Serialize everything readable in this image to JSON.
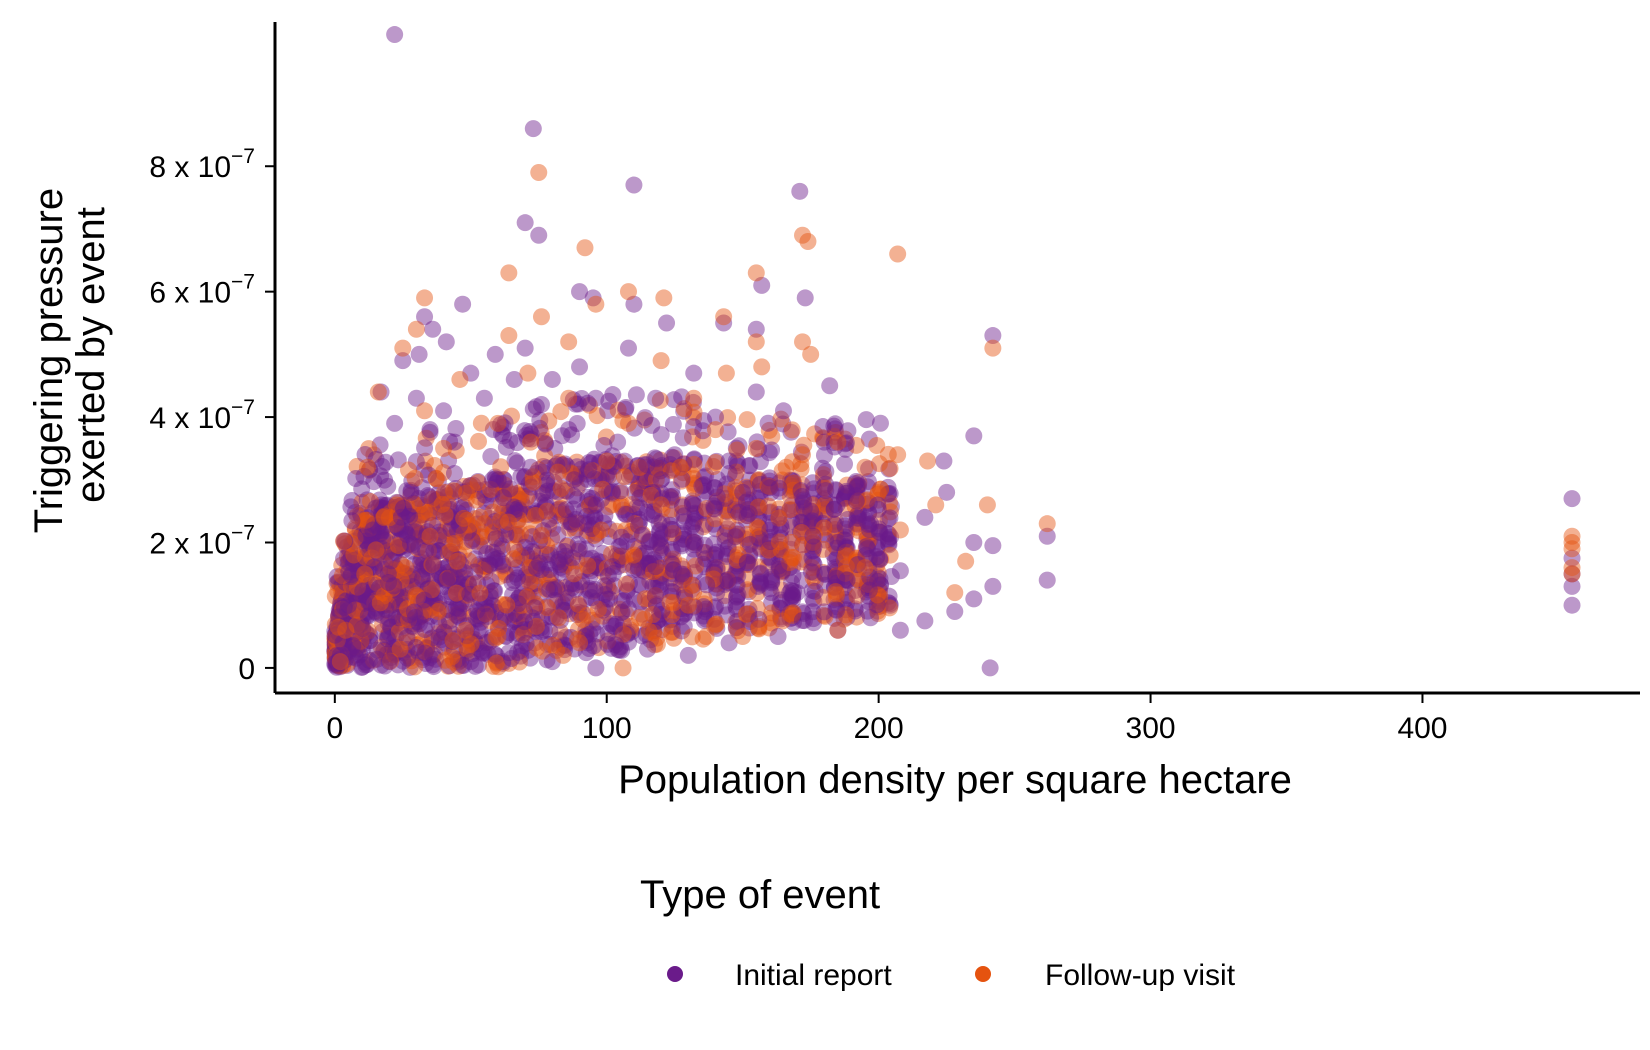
{
  "chart_data": {
    "type": "scatter",
    "xlabel": "Population density per square hectare",
    "ylabel_lines": [
      "Triggering pressure",
      "exerted by event"
    ],
    "xlim": [
      -22,
      480
    ],
    "ylim": [
      -4e-08,
      1.03e-06
    ],
    "x_ticks": [
      {
        "value": 0,
        "label": "0"
      },
      {
        "value": 100,
        "label": "100"
      },
      {
        "value": 200,
        "label": "200"
      },
      {
        "value": 300,
        "label": "300"
      },
      {
        "value": 400,
        "label": "400"
      }
    ],
    "y_ticks": [
      {
        "value": 0,
        "base": "0",
        "exp": ""
      },
      {
        "value": 2e-07,
        "base": "2 x 10",
        "exp": "−7"
      },
      {
        "value": 4e-07,
        "base": "4 x 10",
        "exp": "−7"
      },
      {
        "value": 6e-07,
        "base": "6 x 10",
        "exp": "−7"
      },
      {
        "value": 8e-07,
        "base": "8 x 10",
        "exp": "−7"
      }
    ],
    "legend": {
      "title": "Type of event",
      "position": "bottom",
      "entries": [
        "Initial report",
        "Follow-up visit"
      ]
    },
    "series": [
      {
        "name": "Initial report",
        "color": "#6a1b8a",
        "opacity": 0.45,
        "points": [
          [
            22,
            1.01e-06
          ],
          [
            73,
            8.6e-07
          ],
          [
            110,
            7.7e-07
          ],
          [
            171,
            7.6e-07
          ],
          [
            70,
            7.1e-07
          ],
          [
            75,
            6.9e-07
          ],
          [
            90,
            6e-07
          ],
          [
            95,
            5.9e-07
          ],
          [
            110,
            5.8e-07
          ],
          [
            122,
            5.5e-07
          ],
          [
            173,
            5.9e-07
          ],
          [
            157,
            6.1e-07
          ],
          [
            47,
            5.8e-07
          ],
          [
            33,
            5.6e-07
          ],
          [
            36,
            5.4e-07
          ],
          [
            41,
            5.2e-07
          ],
          [
            242,
            5.3e-07
          ],
          [
            143,
            5.5e-07
          ],
          [
            155,
            5.4e-07
          ],
          [
            108,
            5.1e-07
          ],
          [
            70,
            5.1e-07
          ],
          [
            59,
            5e-07
          ],
          [
            25,
            4.9e-07
          ],
          [
            31,
            5e-07
          ],
          [
            50,
            4.7e-07
          ],
          [
            66,
            4.6e-07
          ],
          [
            80,
            4.6e-07
          ],
          [
            90,
            4.8e-07
          ],
          [
            132,
            4.7e-07
          ],
          [
            155,
            4.4e-07
          ],
          [
            182,
            4.5e-07
          ],
          [
            17,
            4.4e-07
          ],
          [
            30,
            4.3e-07
          ],
          [
            40,
            4.1e-07
          ],
          [
            55,
            4.3e-07
          ],
          [
            76,
            4.2e-07
          ],
          [
            96,
            4.3e-07
          ],
          [
            118,
            4.3e-07
          ],
          [
            140,
            4e-07
          ],
          [
            165,
            4.1e-07
          ],
          [
            235,
            3.7e-07
          ],
          [
            22,
            3.9e-07
          ],
          [
            35,
            3.8e-07
          ],
          [
            44,
            3.6e-07
          ],
          [
            62,
            3.7e-07
          ],
          [
            86,
            3.8e-07
          ],
          [
            104,
            3.6e-07
          ],
          [
            125,
            3.4e-07
          ],
          [
            145,
            3.3e-07
          ],
          [
            180,
            3.6e-07
          ],
          [
            224,
            3.3e-07
          ],
          [
            455,
            2.7e-07
          ],
          [
            455,
            1.75e-07
          ],
          [
            455,
            1.5e-07
          ],
          [
            455,
            1.3e-07
          ],
          [
            455,
            1e-07
          ],
          [
            241,
            0
          ],
          [
            262,
            2.1e-07
          ],
          [
            262,
            1.4e-07
          ],
          [
            242,
            1.95e-07
          ],
          [
            242,
            1.3e-07
          ],
          [
            235,
            2e-07
          ],
          [
            235,
            1.1e-07
          ],
          [
            225,
            2.8e-07
          ],
          [
            228,
            9e-08
          ],
          [
            217,
            2.4e-07
          ],
          [
            217,
            7.5e-08
          ],
          [
            208,
            1.55e-07
          ],
          [
            208,
            6e-08
          ],
          [
            197,
            2.3e-07
          ],
          [
            197,
            8e-08
          ],
          [
            185,
            2e-07
          ],
          [
            185,
            6e-08
          ],
          [
            175,
            2.5e-07
          ],
          [
            170,
            1.2e-07
          ],
          [
            160,
            2.2e-07
          ],
          [
            163,
            5e-08
          ],
          [
            150,
            2.8e-07
          ],
          [
            145,
            3.1e-07
          ],
          [
            145,
            4e-08
          ],
          [
            135,
            2.9e-07
          ],
          [
            130,
            2e-08
          ],
          [
            120,
            3e-07
          ],
          [
            115,
            3e-08
          ],
          [
            102,
            2.8e-07
          ],
          [
            96,
            0
          ],
          [
            88,
            3e-07
          ],
          [
            80,
            1e-08
          ],
          [
            72,
            3.2e-07
          ],
          [
            65,
            1.5e-08
          ],
          [
            58,
            3e-07
          ],
          [
            50,
            1e-08
          ],
          [
            44,
            3.1e-07
          ],
          [
            36,
            5e-09
          ],
          [
            28,
            2.8e-07
          ],
          [
            20,
            1e-08
          ],
          [
            14,
            2.2e-07
          ],
          [
            8,
            3e-08
          ],
          [
            5,
            1e-07
          ],
          [
            3,
            4e-08
          ],
          [
            1,
            1e-08
          ],
          [
            2,
            2e-08
          ]
        ]
      },
      {
        "name": "Follow-up visit",
        "color": "#e5530f",
        "opacity": 0.45,
        "points": [
          [
            75,
            7.9e-07
          ],
          [
            92,
            6.7e-07
          ],
          [
            172,
            6.9e-07
          ],
          [
            174,
            6.8e-07
          ],
          [
            207,
            6.6e-07
          ],
          [
            64,
            6.3e-07
          ],
          [
            155,
            6.3e-07
          ],
          [
            108,
            6e-07
          ],
          [
            121,
            5.9e-07
          ],
          [
            96,
            5.8e-07
          ],
          [
            33,
            5.9e-07
          ],
          [
            76,
            5.6e-07
          ],
          [
            143,
            5.6e-07
          ],
          [
            30,
            5.4e-07
          ],
          [
            25,
            5.1e-07
          ],
          [
            64,
            5.3e-07
          ],
          [
            86,
            5.2e-07
          ],
          [
            155,
            5.2e-07
          ],
          [
            172,
            5.2e-07
          ],
          [
            175,
            5e-07
          ],
          [
            242,
            5.1e-07
          ],
          [
            120,
            4.9e-07
          ],
          [
            71,
            4.7e-07
          ],
          [
            46,
            4.6e-07
          ],
          [
            144,
            4.7e-07
          ],
          [
            157,
            4.8e-07
          ],
          [
            16,
            4.4e-07
          ],
          [
            86,
            4.3e-07
          ],
          [
            132,
            4.3e-07
          ],
          [
            33,
            4.1e-07
          ],
          [
            60,
            3.9e-07
          ],
          [
            108,
            3.9e-07
          ],
          [
            140,
            3.8e-07
          ],
          [
            185,
            3.6e-07
          ],
          [
            12,
            3.2e-07
          ],
          [
            40,
            3.5e-07
          ],
          [
            72,
            3.6e-07
          ],
          [
            100,
            3.3e-07
          ],
          [
            127,
            3.2e-07
          ],
          [
            155,
            3.5e-07
          ],
          [
            172,
            3.4e-07
          ],
          [
            207,
            3.4e-07
          ],
          [
            218,
            3.3e-07
          ],
          [
            195,
            3.2e-07
          ],
          [
            166,
            3.2e-07
          ],
          [
            262,
            2.3e-07
          ],
          [
            240,
            2.6e-07
          ],
          [
            221,
            2.6e-07
          ],
          [
            232,
            1.7e-07
          ],
          [
            228,
            1.2e-07
          ],
          [
            208,
            2.2e-07
          ],
          [
            195,
            1.6e-07
          ],
          [
            185,
            6e-08
          ],
          [
            168,
            2e-07
          ],
          [
            150,
            5e-08
          ],
          [
            455,
            2.1e-07
          ],
          [
            455,
            2e-07
          ],
          [
            455,
            1.9e-07
          ],
          [
            455,
            1.6e-07
          ],
          [
            455,
            1.5e-07
          ],
          [
            120,
            2.6e-07
          ],
          [
            110,
            1.8e-07
          ],
          [
            98,
            2.2e-07
          ],
          [
            88,
            1.5e-07
          ],
          [
            78,
            2.5e-07
          ],
          [
            66,
            1.9e-07
          ],
          [
            55,
            2.3e-07
          ],
          [
            45,
            1.7e-07
          ],
          [
            35,
            2.1e-07
          ],
          [
            26,
            1.6e-07
          ],
          [
            18,
            2.4e-07
          ],
          [
            11,
            1.5e-07
          ],
          [
            7,
            1.8e-07
          ],
          [
            4,
            6e-08
          ],
          [
            2,
            1e-08
          ],
          [
            24,
            3e-08
          ],
          [
            60,
            5e-08
          ],
          [
            90,
            4e-08
          ],
          [
            112,
            8e-08
          ],
          [
            130,
            1e-07
          ],
          [
            106,
            0
          ],
          [
            84,
            2e-08
          ],
          [
            48,
            6e-08
          ],
          [
            38,
            9e-08
          ]
        ]
      }
    ]
  }
}
